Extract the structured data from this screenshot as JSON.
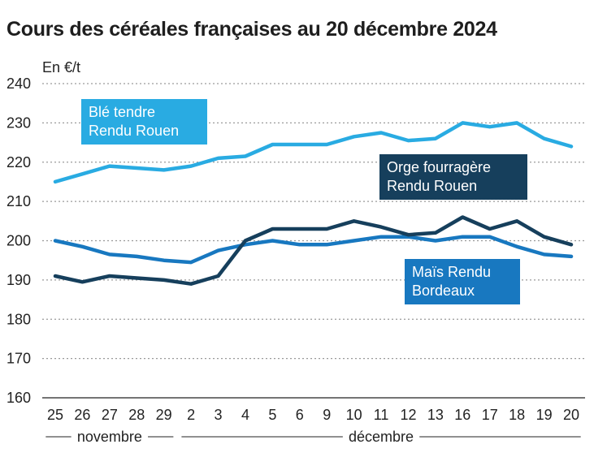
{
  "chart_data": {
    "type": "line",
    "title": "Cours des céréales françaises au 20 décembre 2024",
    "ylabel": "En €/t",
    "xlabel": "",
    "ylim": [
      160,
      240
    ],
    "yticks": [
      160,
      170,
      180,
      190,
      200,
      210,
      220,
      230,
      240
    ],
    "categories": [
      "25",
      "26",
      "27",
      "28",
      "29",
      "2",
      "3",
      "4",
      "5",
      "6",
      "9",
      "10",
      "11",
      "12",
      "13",
      "16",
      "17",
      "18",
      "19",
      "20"
    ],
    "months": [
      {
        "name": "novembre",
        "from": 0,
        "to": 4
      },
      {
        "name": "décembre",
        "from": 5,
        "to": 19
      }
    ],
    "grid": true,
    "series": [
      {
        "name": "Blé tendre Rendu Rouen",
        "label_lines": [
          "Blé tendre",
          "Rendu Rouen"
        ],
        "color": "#29abe2",
        "values": [
          215,
          217,
          219,
          218.5,
          218,
          219,
          221,
          221.5,
          224.5,
          224.5,
          224.5,
          226.5,
          227.5,
          225.5,
          226,
          230,
          229,
          230,
          226,
          224
        ]
      },
      {
        "name": "Orge fourragère Rendu Rouen",
        "label_lines": [
          "Orge fourragère",
          "Rendu Rouen"
        ],
        "color": "#163f5c",
        "values": [
          191,
          189.5,
          191,
          190.5,
          190,
          189,
          191,
          200,
          203,
          203,
          203,
          205,
          203.5,
          201.5,
          202,
          206,
          203,
          205,
          201,
          199
        ]
      },
      {
        "name": "Maïs Rendu Bordeaux",
        "label_lines": [
          "Maïs Rendu",
          "Bordeaux"
        ],
        "color": "#1878c0",
        "values": [
          200,
          198.5,
          196.5,
          196,
          195,
          194.5,
          197.5,
          199,
          200,
          199,
          199,
          200,
          201,
          201,
          200,
          201,
          201,
          198.5,
          196.5,
          196
        ]
      }
    ]
  }
}
